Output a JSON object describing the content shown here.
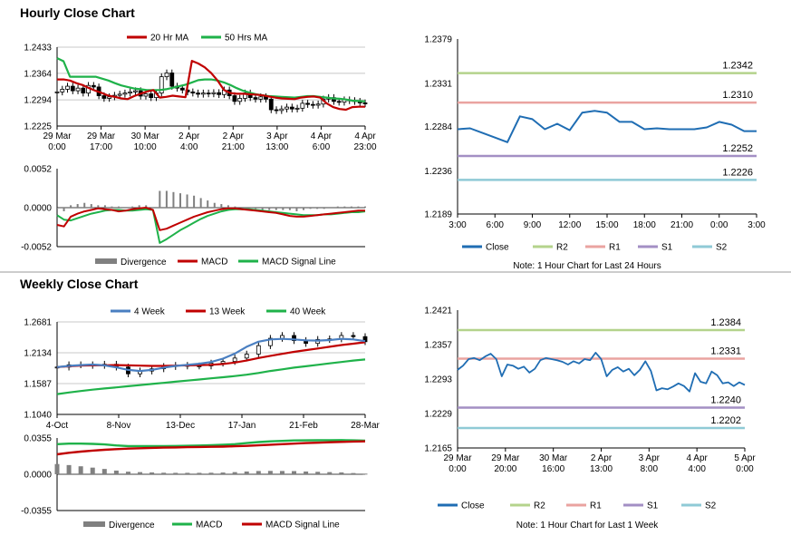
{
  "sections": {
    "hourly_title": "Hourly Close Chart",
    "weekly_title": "Weekly Close Chart"
  },
  "colors": {
    "ma_red": "#c00000",
    "ma_green": "#1fb24a",
    "ma_blue": "#4a7fc1",
    "close_blue": "#1f6db3",
    "r2": "#b4d38c",
    "r1": "#eaa3a0",
    "s1": "#a38fc4",
    "s2": "#8fcad6",
    "divergence": "#808080",
    "separator": "#9a9a9a"
  },
  "chart_data": [
    {
      "id": "hourly_price",
      "type": "line",
      "y_ticks": [
        "1.2433",
        "1.2364",
        "1.2294",
        "1.2225"
      ],
      "ylim": [
        1.2225,
        1.2433
      ],
      "x_ticks": [
        [
          "29 Mar",
          "0:00"
        ],
        [
          "29 Mar",
          "17:00"
        ],
        [
          "30 Mar",
          "10:00"
        ],
        [
          "2 Apr",
          "4:00"
        ],
        [
          "2 Apr",
          "21:00"
        ],
        [
          "3 Apr",
          "13:00"
        ],
        [
          "4 Apr",
          "6:00"
        ],
        [
          "4 Apr",
          "23:00"
        ]
      ],
      "legend": [
        "20 Hr MA",
        "50 Hrs MA"
      ],
      "series": [
        {
          "name": "20 Hr MA",
          "values": [
            1.2348,
            1.2348,
            1.2345,
            1.2338,
            1.2333,
            1.2325,
            1.2318,
            1.2312,
            1.2305,
            1.2302,
            1.2298,
            1.2296,
            1.2304,
            1.231,
            1.2316,
            1.232,
            1.23,
            1.2302,
            1.2305,
            1.2303,
            1.2301,
            1.2397,
            1.239,
            1.238,
            1.2365,
            1.2345,
            1.232,
            1.2312,
            1.231,
            1.231,
            1.2309,
            1.2308,
            1.2306,
            1.2303,
            1.23,
            1.2298,
            1.2297,
            1.2296,
            1.23,
            1.2302,
            1.2303,
            1.23,
            1.2285,
            1.2275,
            1.227,
            1.2268,
            1.2275,
            1.2276,
            1.2276
          ]
        },
        {
          "name": "50 Hrs MA",
          "values": [
            1.2404,
            1.2396,
            1.2355,
            1.2355,
            1.2355,
            1.2355,
            1.2355,
            1.235,
            1.2345,
            1.2338,
            1.2332,
            1.2328,
            1.2324,
            1.2322,
            1.232,
            1.232,
            1.232,
            1.2322,
            1.2326,
            1.233,
            1.2334,
            1.234,
            1.2346,
            1.2348,
            1.2348,
            1.2345,
            1.234,
            1.2333,
            1.2325,
            1.2318,
            1.2313,
            1.2309,
            1.2306,
            1.2304,
            1.2303,
            1.2302,
            1.2301,
            1.23,
            1.2302,
            1.2304,
            1.2304,
            1.2302,
            1.23,
            1.2298,
            1.2297,
            1.2295,
            1.2292,
            1.2291,
            1.229
          ]
        }
      ],
      "candles_close": [
        1.2315,
        1.2322,
        1.233,
        1.2318,
        1.2325,
        1.2312,
        1.2332,
        1.2328,
        1.2305,
        1.2298,
        1.2302,
        1.2306,
        1.2309,
        1.2312,
        1.2315,
        1.2318,
        1.2304,
        1.231,
        1.23,
        1.2312,
        1.2355,
        1.2365,
        1.233,
        1.2325,
        1.232,
        1.2315,
        1.2312,
        1.2309,
        1.2312,
        1.231,
        1.2313,
        1.2308,
        1.232,
        1.2305,
        1.229,
        1.2298,
        1.2312,
        1.23,
        1.2296,
        1.2302,
        1.2296,
        1.2268,
        1.2266,
        1.227,
        1.2275,
        1.227,
        1.2272,
        1.2285,
        1.2282,
        1.228,
        1.2283,
        1.2296,
        1.23,
        1.229,
        1.2288,
        1.2294,
        1.2292,
        1.229,
        1.2286,
        1.2284
      ]
    },
    {
      "id": "hourly_macd",
      "type": "line",
      "y_ticks": [
        "0.0052",
        "0.0000",
        "-0.0052"
      ],
      "ylim": [
        -0.0052,
        0.0052
      ],
      "legend": [
        "Divergence",
        "MACD",
        "MACD Signal Line"
      ],
      "series": [
        {
          "name": "MACD",
          "values": [
            -0.0023,
            -0.0025,
            -0.0012,
            -0.0008,
            -0.0005,
            -0.0003,
            -0.0001,
            -0.0002,
            -0.0003,
            -0.0005,
            -0.0004,
            -0.0002,
            -0.0001,
            0.0,
            -0.0003,
            -0.003,
            -0.0028,
            -0.0024,
            -0.002,
            -0.0016,
            -0.0012,
            -0.0009,
            -0.0006,
            -0.0004,
            -0.0002,
            -0.0001,
            -0.0001,
            -0.0002,
            -0.0003,
            -0.0004,
            -0.0005,
            -0.0006,
            -0.0007,
            -0.0009,
            -0.0011,
            -0.0012,
            -0.0012,
            -0.0011,
            -0.001,
            -0.0009,
            -0.0008,
            -0.0007,
            -0.0006,
            -0.0005,
            -0.0004,
            -0.0004
          ]
        },
        {
          "name": "MACD Signal Line",
          "values": [
            -0.001,
            -0.0016,
            -0.0017,
            -0.0014,
            -0.0011,
            -0.0008,
            -0.0006,
            -0.0004,
            -0.0003,
            -0.0003,
            -0.0004,
            -0.0004,
            -0.0003,
            -0.0002,
            -0.0003,
            -0.0047,
            -0.0042,
            -0.0036,
            -0.003,
            -0.0025,
            -0.002,
            -0.0015,
            -0.0011,
            -0.0008,
            -0.0005,
            -0.0003,
            -0.0002,
            -0.0002,
            -0.0002,
            -0.0003,
            -0.0004,
            -0.0005,
            -0.0006,
            -0.0007,
            -0.0008,
            -0.0009,
            -0.001,
            -0.001,
            -0.001,
            -0.0009,
            -0.0009,
            -0.0008,
            -0.0007,
            -0.0006,
            -0.0006,
            -0.0005
          ]
        },
        {
          "name": "Divergence",
          "values": [
            -0.0005,
            -0.0003,
            0.0002,
            0.0003,
            0.0004,
            0.0003,
            0.0002,
            0.0002,
            0.0001,
            0.0001,
            0.0,
            0.0001,
            0.0002,
            0.0002,
            0.0,
            0.0014,
            0.0014,
            0.0013,
            0.0012,
            0.0011,
            0.001,
            0.0008,
            0.0006,
            0.0004,
            0.0003,
            0.0002,
            0.0001,
            0.0,
            -0.0001,
            -0.0001,
            -0.0002,
            -0.0002,
            -0.0002,
            -0.0002,
            -0.0002,
            -0.0003,
            -0.0002,
            -0.0001,
            -0.0001,
            -0.0001,
            0.0,
            0.0001,
            0.0001,
            0.0001,
            0.0001,
            0.0001
          ]
        }
      ]
    },
    {
      "id": "hourly_close_24h",
      "type": "line",
      "y_ticks": [
        "1.2379",
        "1.2331",
        "1.2284",
        "1.2236",
        "1.2189"
      ],
      "ylim": [
        1.2189,
        1.2379
      ],
      "x_ticks": [
        "3:00",
        "6:00",
        "9:00",
        "12:00",
        "15:00",
        "18:00",
        "21:00",
        "0:00",
        "3:00"
      ],
      "x": [
        0,
        1,
        2,
        3,
        4,
        5,
        6,
        7,
        8,
        9,
        10,
        11,
        12,
        13,
        14,
        15,
        16,
        17,
        18,
        19,
        20,
        21,
        22,
        23,
        24
      ],
      "series": [
        {
          "name": "Close",
          "values": [
            1.2281,
            1.2282,
            1.2277,
            1.2272,
            1.2267,
            1.2295,
            1.2292,
            1.2281,
            1.2287,
            1.228,
            1.2299,
            1.2301,
            1.2299,
            1.2289,
            1.2289,
            1.2281,
            1.2282,
            1.2281,
            1.2281,
            1.2281,
            1.2283,
            1.2289,
            1.2286,
            1.2279,
            1.2279
          ]
        }
      ],
      "levels": [
        {
          "name": "R2",
          "value": 1.2342,
          "label": "1.2342"
        },
        {
          "name": "R1",
          "value": 1.231,
          "label": "1.2310"
        },
        {
          "name": "S1",
          "value": 1.2252,
          "label": "1.2252"
        },
        {
          "name": "S2",
          "value": 1.2226,
          "label": "1.2226"
        }
      ],
      "legend": [
        "Close",
        "R2",
        "R1",
        "S1",
        "S2"
      ],
      "note": "Note: 1 Hour Chart for Last 24 Hours"
    },
    {
      "id": "weekly_price",
      "type": "line",
      "y_ticks": [
        "1.2681",
        "1.2134",
        "1.1587",
        "1.1040"
      ],
      "ylim": [
        1.104,
        1.2681
      ],
      "x_ticks": [
        "4-Oct",
        "8-Nov",
        "13-Dec",
        "17-Jan",
        "21-Feb",
        "28-Mar"
      ],
      "legend": [
        "4 Week",
        "13 Week",
        "40 Week"
      ],
      "series": [
        {
          "name": "4 Week",
          "values": [
            1.188,
            1.19,
            1.1915,
            1.1925,
            1.191,
            1.1875,
            1.183,
            1.181,
            1.183,
            1.187,
            1.19,
            1.192,
            1.194,
            1.197,
            1.203,
            1.212,
            1.224,
            1.233,
            1.237,
            1.238,
            1.237,
            1.2355,
            1.235,
            1.236,
            1.238,
            1.237,
            1.234
          ]
        },
        {
          "name": "13 Week",
          "values": [
            1.188,
            1.1895,
            1.1905,
            1.191,
            1.1912,
            1.1915,
            1.191,
            1.1905,
            1.19,
            1.19,
            1.1905,
            1.191,
            1.1915,
            1.192,
            1.1935,
            1.196,
            1.1995,
            1.204,
            1.208,
            1.2115,
            1.215,
            1.218,
            1.221,
            1.224,
            1.227,
            1.2295,
            1.232
          ]
        },
        {
          "name": "40 Week",
          "values": [
            1.14,
            1.143,
            1.1455,
            1.148,
            1.15,
            1.152,
            1.154,
            1.156,
            1.158,
            1.16,
            1.162,
            1.164,
            1.166,
            1.168,
            1.17,
            1.172,
            1.1745,
            1.1775,
            1.181,
            1.184,
            1.187,
            1.1895,
            1.192,
            1.1945,
            1.197,
            1.1995,
            1.2015
          ]
        }
      ],
      "candles_close": [
        1.188,
        1.192,
        1.192,
        1.191,
        1.193,
        1.188,
        1.176,
        1.181,
        1.185,
        1.189,
        1.191,
        1.19,
        1.19,
        1.195,
        1.198,
        1.204,
        1.211,
        1.226,
        1.239,
        1.244,
        1.235,
        1.23,
        1.237,
        1.238,
        1.244,
        1.242,
        1.233
      ]
    },
    {
      "id": "weekly_macd",
      "type": "line",
      "y_ticks": [
        "0.0355",
        "0.0000",
        "-0.0355"
      ],
      "ylim": [
        -0.0355,
        0.0355
      ],
      "legend": [
        "Divergence",
        "MACD",
        "MACD Signal Line"
      ],
      "series": [
        {
          "name": "MACD",
          "values": [
            0.0295,
            0.03,
            0.03,
            0.0297,
            0.0292,
            0.0282,
            0.0276,
            0.0276,
            0.0276,
            0.0276,
            0.0277,
            0.0279,
            0.0281,
            0.0284,
            0.0288,
            0.0295,
            0.0305,
            0.0315,
            0.0322,
            0.0327,
            0.0331,
            0.0332,
            0.0333,
            0.0334,
            0.0335,
            0.0332,
            0.0328
          ]
        },
        {
          "name": "MACD Signal Line",
          "values": [
            0.0195,
            0.021,
            0.0222,
            0.0232,
            0.024,
            0.0246,
            0.0251,
            0.0255,
            0.0258,
            0.0261,
            0.0263,
            0.0265,
            0.0267,
            0.0269,
            0.0271,
            0.0274,
            0.0278,
            0.0283,
            0.0289,
            0.0295,
            0.03,
            0.0305,
            0.0309,
            0.0313,
            0.0317,
            0.032,
            0.0322
          ]
        },
        {
          "name": "Divergence",
          "values": [
            0.01,
            0.009,
            0.0078,
            0.0065,
            0.0052,
            0.0036,
            0.0025,
            0.0021,
            0.0018,
            0.0015,
            0.0014,
            0.0014,
            0.0014,
            0.0015,
            0.0017,
            0.0021,
            0.0027,
            0.0032,
            0.0033,
            0.0032,
            0.0031,
            0.0027,
            0.0024,
            0.0021,
            0.0018,
            0.0012,
            0.0006
          ]
        }
      ]
    },
    {
      "id": "weekly_close_1w",
      "type": "line",
      "y_ticks": [
        "1.2421",
        "1.2357",
        "1.2293",
        "1.2229",
        "1.2165"
      ],
      "ylim": [
        1.2165,
        1.2421
      ],
      "x_ticks": [
        [
          "29 Mar",
          "0:00"
        ],
        [
          "29 Mar",
          "20:00"
        ],
        [
          "30 Mar",
          "16:00"
        ],
        [
          "2 Apr",
          "13:00"
        ],
        [
          "3 Apr",
          "8:00"
        ],
        [
          "4 Apr",
          "4:00"
        ],
        [
          "5 Apr",
          "0:00"
        ]
      ],
      "series": [
        {
          "name": "Close",
          "values": [
            1.231,
            1.2318,
            1.233,
            1.2332,
            1.2328,
            1.2335,
            1.234,
            1.233,
            1.2298,
            1.232,
            1.2318,
            1.2312,
            1.2316,
            1.2305,
            1.2312,
            1.2328,
            1.2332,
            1.233,
            1.2328,
            1.2325,
            1.232,
            1.2326,
            1.2322,
            1.233,
            1.2328,
            1.2342,
            1.233,
            1.2298,
            1.231,
            1.2315,
            1.2307,
            1.2312,
            1.23,
            1.231,
            1.2326,
            1.2308,
            1.2272,
            1.2276,
            1.2274,
            1.2279,
            1.2285,
            1.228,
            1.227,
            1.2304,
            1.2288,
            1.2285,
            1.2307,
            1.23,
            1.2285,
            1.2287,
            1.228,
            1.2287,
            1.2282
          ]
        }
      ],
      "levels": [
        {
          "name": "R2",
          "value": 1.2384,
          "label": "1.2384"
        },
        {
          "name": "R1",
          "value": 1.2331,
          "label": "1.2331"
        },
        {
          "name": "S1",
          "value": 1.224,
          "label": "1.2240"
        },
        {
          "name": "S2",
          "value": 1.2202,
          "label": "1.2202"
        }
      ],
      "legend": [
        "Close",
        "R2",
        "R1",
        "S1",
        "S2"
      ],
      "note": "Note: 1 Hour Chart for Last 1 Week"
    }
  ]
}
